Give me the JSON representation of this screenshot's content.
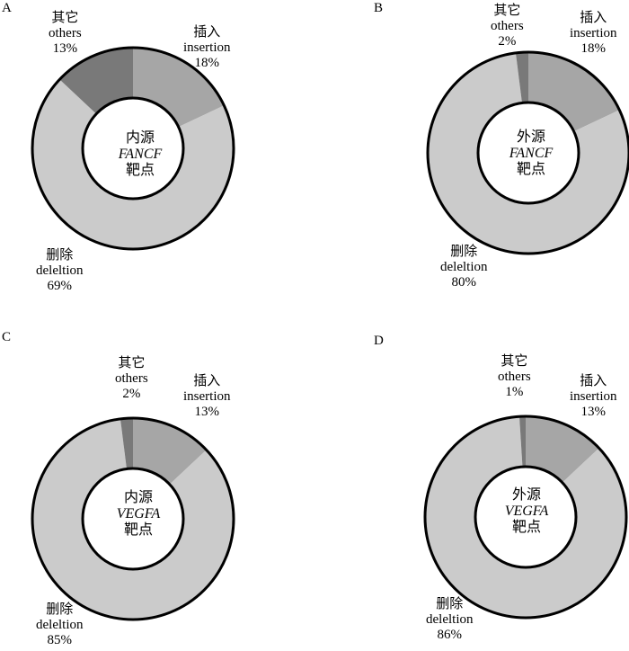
{
  "chart_data": [
    {
      "type": "pie",
      "panel": "A",
      "center_label": [
        "内源",
        "FANCF",
        "靶点"
      ],
      "slices": [
        {
          "key": "insertion",
          "name_cn": "插入",
          "name_en": "insertion",
          "percent_label": "18%",
          "value": 18,
          "color": "#a6a6a6"
        },
        {
          "key": "deletion",
          "name_cn": "删除",
          "name_en": "deleltion",
          "percent_label": "69%",
          "value": 69,
          "color": "#cbcbcb"
        },
        {
          "key": "others",
          "name_cn": "其它",
          "name_en": "others",
          "percent_label": "13%",
          "value": 13,
          "color": "#797979"
        }
      ]
    },
    {
      "type": "pie",
      "panel": "B",
      "center_label": [
        "外源",
        "FANCF",
        "靶点"
      ],
      "slices": [
        {
          "key": "insertion",
          "name_cn": "插入",
          "name_en": "insertion",
          "percent_label": "18%",
          "value": 18,
          "color": "#a6a6a6"
        },
        {
          "key": "deletion",
          "name_cn": "删除",
          "name_en": "deleltion",
          "percent_label": "80%",
          "value": 80,
          "color": "#cbcbcb"
        },
        {
          "key": "others",
          "name_cn": "其它",
          "name_en": "others",
          "percent_label": "2%",
          "value": 2,
          "color": "#797979"
        }
      ]
    },
    {
      "type": "pie",
      "panel": "C",
      "center_label": [
        "内源",
        "VEGFA",
        "靶点"
      ],
      "slices": [
        {
          "key": "insertion",
          "name_cn": "插入",
          "name_en": "insertion",
          "percent_label": "13%",
          "value": 13,
          "color": "#a6a6a6"
        },
        {
          "key": "deletion",
          "name_cn": "删除",
          "name_en": "deleltion",
          "percent_label": "85%",
          "value": 85,
          "color": "#cbcbcb"
        },
        {
          "key": "others",
          "name_cn": "其它",
          "name_en": "others",
          "percent_label": "2%",
          "value": 2,
          "color": "#797979"
        }
      ]
    },
    {
      "type": "pie",
      "panel": "D",
      "center_label": [
        "外源",
        "VEGFA",
        "靶点"
      ],
      "slices": [
        {
          "key": "insertion",
          "name_cn": "插入",
          "name_en": "insertion",
          "percent_label": "13%",
          "value": 13,
          "color": "#a6a6a6"
        },
        {
          "key": "deletion",
          "name_cn": "删除",
          "name_en": "deleltion",
          "percent_label": "86%",
          "value": 86,
          "color": "#cbcbcb"
        },
        {
          "key": "others",
          "name_cn": "其它",
          "name_en": "others",
          "percent_label": "1%",
          "value": 1,
          "color": "#797979"
        }
      ]
    }
  ]
}
